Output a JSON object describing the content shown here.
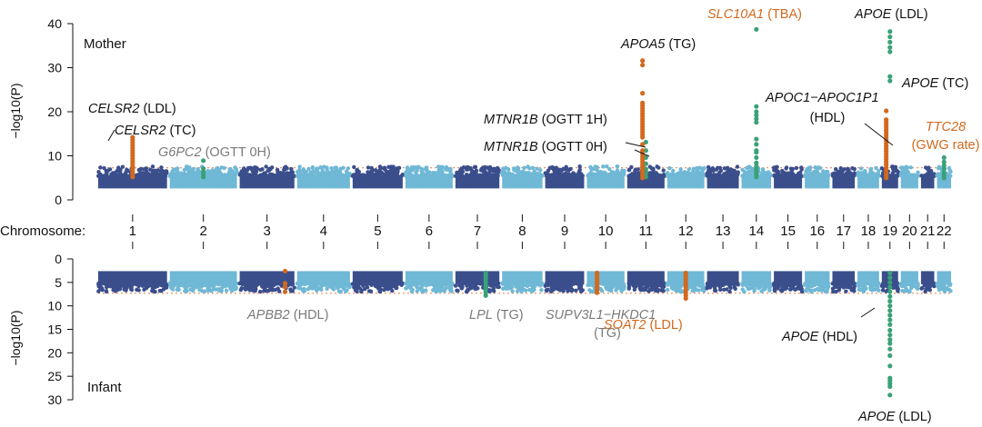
{
  "chart_data": {
    "type": "scatter",
    "subtype": "miami-plot",
    "colors": {
      "chrom_dark": "#3b4e8c",
      "chrom_light": "#6fb8d6",
      "highlight_orange": "#d2691e",
      "highlight_green": "#3aa177",
      "threshold": "#e8956a",
      "text_gray": "#7a7a7a",
      "text_black": "#111111"
    },
    "x_axis": {
      "label": "Chromosome:",
      "chromosomes": [
        "1",
        "2",
        "3",
        "4",
        "5",
        "6",
        "7",
        "8",
        "9",
        "10",
        "11",
        "12",
        "13",
        "14",
        "15",
        "16",
        "17",
        "18",
        "19",
        "20",
        "21",
        "22"
      ]
    },
    "panels": [
      {
        "name": "Mother",
        "ylabel": "−log10(P)",
        "ylim": [
          0,
          40
        ],
        "yticks": [
          "0",
          "10",
          "20",
          "30",
          "40"
        ],
        "threshold": 7.3,
        "hits": [
          {
            "chrom": 1,
            "color": "orange",
            "values": [
              14.2,
              13.6,
              13.0,
              12.4,
              11.8,
              11.2,
              10.6,
              10.0,
              9.4,
              8.8,
              8.2,
              7.6,
              7.0,
              6.4,
              5.8,
              5.2
            ]
          },
          {
            "chrom": 2,
            "color": "green",
            "values": [
              8.9,
              7.1,
              6.4,
              5.8,
              5.2
            ]
          },
          {
            "chrom": 11,
            "color": "green",
            "values": [
              13.1,
              11.2,
              9.6,
              8.2,
              7.0,
              6.0,
              5.2
            ]
          },
          {
            "chrom": 11.3,
            "color": "orange",
            "values": [
              31.6,
              30.6,
              24.2,
              22.0,
              21.4,
              20.8,
              20.2,
              19.6,
              19.0,
              18.4,
              17.8,
              17.2,
              16.6,
              16.0,
              15.4,
              14.8,
              14.2,
              12.6,
              11.2,
              10.4,
              9.8,
              9.2,
              8.6,
              8.0,
              7.4,
              6.8,
              6.2,
              5.6,
              5.0
            ]
          },
          {
            "chrom": 14,
            "color": "green",
            "values": [
              38.7,
              21.2,
              20.0,
              19.2,
              18.4,
              17.6,
              13.8,
              12.6,
              11.2,
              10.8,
              9.6,
              8.4,
              7.6,
              7.0,
              6.4,
              5.8,
              5.2
            ]
          },
          {
            "chrom": 19,
            "color": "green",
            "values": [
              38.2,
              37.0,
              35.8,
              34.6,
              33.6,
              28.0,
              27.0
            ]
          },
          {
            "chrom": 19.1,
            "color": "orange",
            "values": [
              20.2,
              18.2,
              17.6,
              17.0,
              16.4,
              15.8,
              15.2,
              14.6,
              14.0,
              13.4,
              12.8,
              12.2,
              11.6,
              11.0,
              10.4,
              9.8,
              9.2,
              8.6,
              8.0,
              7.4,
              6.8,
              6.2,
              5.6,
              5.0
            ]
          },
          {
            "chrom": 22,
            "color": "green",
            "values": [
              9.6,
              8.6,
              7.8,
              7.0,
              6.2,
              5.6,
              5.0
            ]
          }
        ],
        "annotations": [
          {
            "gene": "CELSR2",
            "trait": "(LDL)",
            "color": "black"
          },
          {
            "gene": "CELSR2",
            "trait": "(TC)",
            "color": "black"
          },
          {
            "gene": "G6PC2",
            "trait": "(OGTT 0H)",
            "color": "gray"
          },
          {
            "gene": "APOA5",
            "trait": "(TG)",
            "color": "black"
          },
          {
            "gene": "MTNR1B",
            "trait": "(OGTT 1H)",
            "color": "black"
          },
          {
            "gene": "MTNR1B",
            "trait": "(OGTT 0H)",
            "color": "black"
          },
          {
            "gene": "SLC10A1",
            "trait": "(TBA)",
            "color": "orange"
          },
          {
            "gene": "APOC1−APOC1P1",
            "trait": "(HDL)",
            "color": "black"
          },
          {
            "gene": "APOE",
            "trait": "(LDL)",
            "color": "black"
          },
          {
            "gene": "APOE",
            "trait": "(TC)",
            "color": "black"
          },
          {
            "gene": "TTC28",
            "trait": "(GWG rate)",
            "color": "orange"
          }
        ]
      },
      {
        "name": "Infant",
        "ylabel": "−log10(P)",
        "ylim": [
          0,
          30
        ],
        "yticks": [
          "0",
          "5",
          "10",
          "15",
          "20",
          "25",
          "30"
        ],
        "threshold": 7.3,
        "hits": [
          {
            "chrom": 3.9,
            "color": "orange",
            "values": [
              2.6,
              5.2,
              6.0,
              7.0
            ]
          },
          {
            "chrom": 7.7,
            "color": "green",
            "values": [
              3.0,
              3.6,
              4.2,
              4.8,
              5.4,
              6.0,
              6.6,
              7.2,
              7.8
            ]
          },
          {
            "chrom": 10.1,
            "color": "orange",
            "values": [
              3.0,
              3.6,
              4.2,
              4.8,
              5.4,
              6.0,
              6.6,
              7.2
            ]
          },
          {
            "chrom": 12,
            "color": "orange",
            "values": [
              3.0,
              3.6,
              4.2,
              4.8,
              5.4,
              6.0,
              6.6,
              7.2,
              7.8,
              8.4
            ]
          },
          {
            "chrom": 19,
            "color": "green",
            "values": [
              3.0,
              4.0,
              5.0,
              6.0,
              7.0,
              8.0,
              9.0,
              10.0,
              11.0,
              12.0,
              13.0,
              14.0,
              15.2,
              16.2,
              17.2,
              18.0,
              19.2,
              20.6,
              22.8,
              25.4,
              26.0,
              26.6,
              27.2,
              29.0
            ]
          }
        ],
        "annotations": [
          {
            "gene": "APBB2",
            "trait": "(HDL)",
            "color": "gray"
          },
          {
            "gene": "LPL",
            "trait": "(TG)",
            "color": "gray"
          },
          {
            "gene": "SUPV3L1−HKDC1",
            "trait": "(TG)",
            "color": "gray"
          },
          {
            "gene": "SOAT2",
            "trait": "(LDL)",
            "color": "orange"
          },
          {
            "gene": "APOE",
            "trait": "(HDL)",
            "color": "black"
          },
          {
            "gene": "APOE",
            "trait": "(LDL)",
            "color": "black"
          }
        ]
      }
    ]
  }
}
